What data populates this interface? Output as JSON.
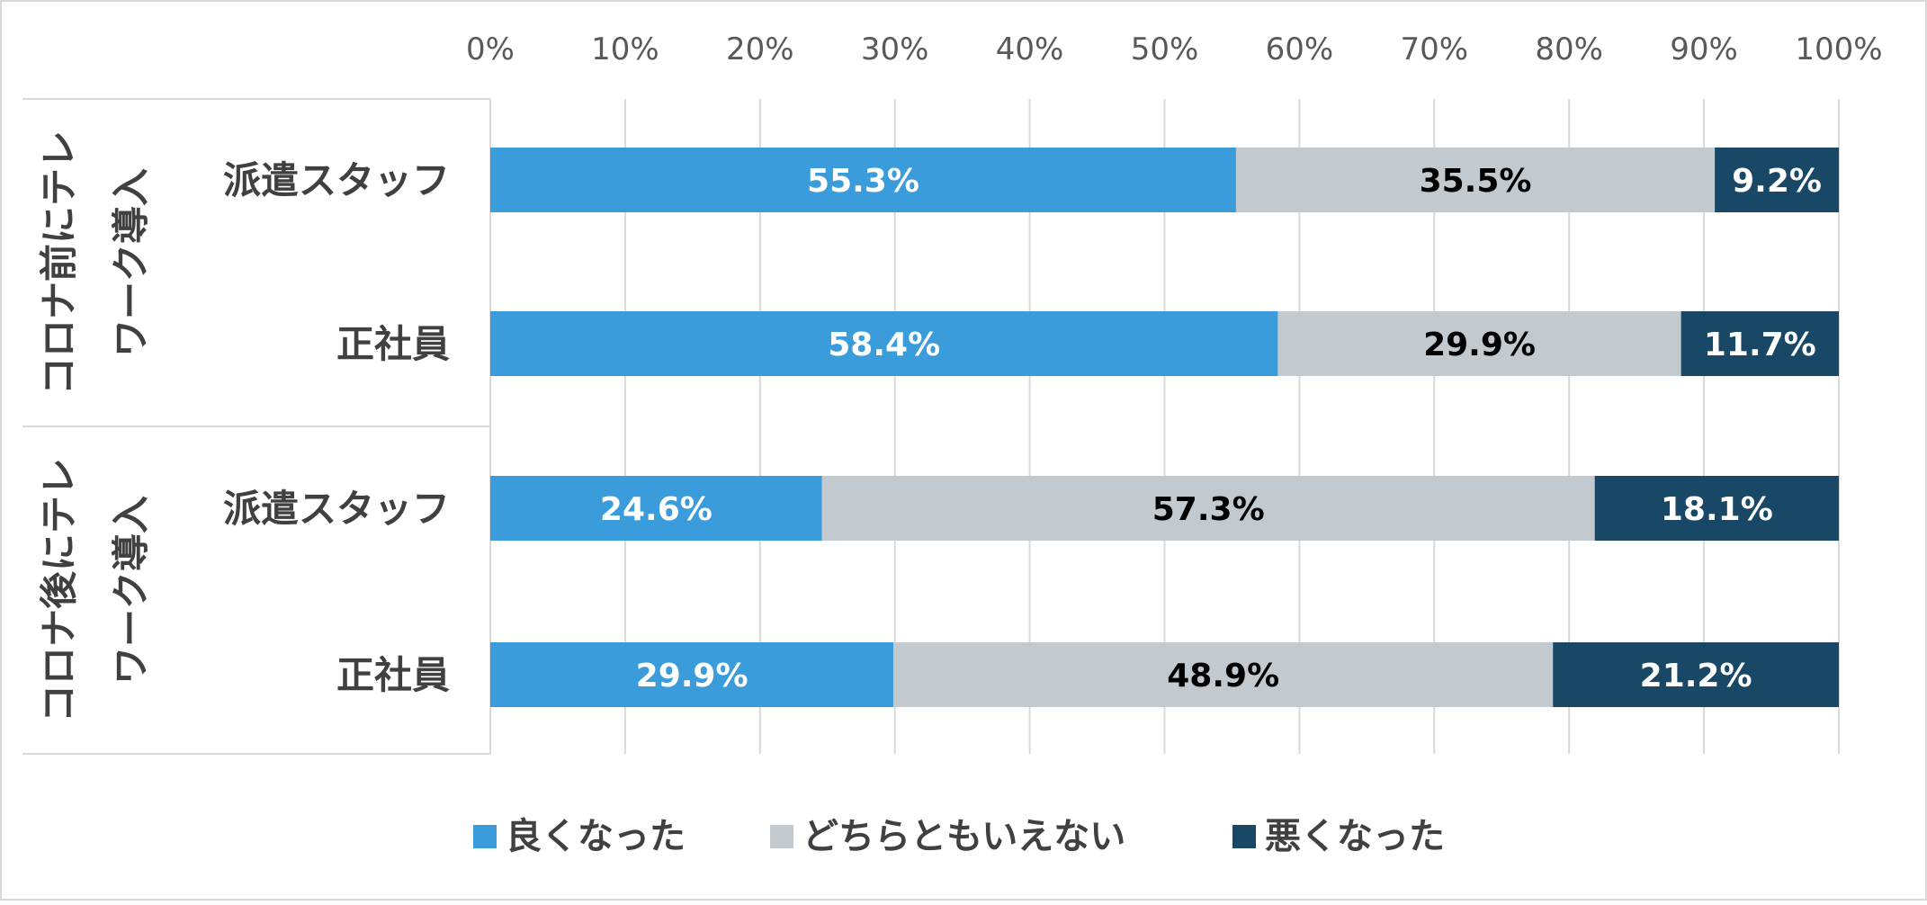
{
  "chart_data": {
    "type": "bar",
    "orientation": "horizontal",
    "stacked": "percent",
    "xlim": [
      0,
      100
    ],
    "x_ticks": [
      "0%",
      "10%",
      "20%",
      "30%",
      "40%",
      "50%",
      "60%",
      "70%",
      "80%",
      "90%",
      "100%"
    ],
    "x_axis_position": "top",
    "grid": true,
    "legend_position": "bottom",
    "groups": [
      {
        "label": "コロナ前にテレワーク導入",
        "label_lines": [
          "コロナ前にテレ",
          "ワーク導入"
        ]
      },
      {
        "label": "コロナ後にテレワーク導入",
        "label_lines": [
          "コロナ後にテレ",
          "ワーク導入"
        ]
      }
    ],
    "categories": [
      {
        "group": 0,
        "label": "派遣スタッフ"
      },
      {
        "group": 0,
        "label": "正社員"
      },
      {
        "group": 1,
        "label": "派遣スタッフ"
      },
      {
        "group": 1,
        "label": "正社員"
      }
    ],
    "series": [
      {
        "name": "良くなった",
        "color": "#3b9cdb",
        "label_color": "#ffffff",
        "values": [
          55.3,
          58.4,
          24.6,
          29.9
        ],
        "labels": [
          "55.3%",
          "58.4%",
          "24.6%",
          "29.9%"
        ]
      },
      {
        "name": "どちらともいえない",
        "color": "#c3cacf",
        "label_color": "#000000",
        "values": [
          35.5,
          29.9,
          57.3,
          48.9
        ],
        "labels": [
          "35.5%",
          "29.9%",
          "57.3%",
          "48.9%"
        ]
      },
      {
        "name": "悪くなった",
        "color": "#184866",
        "label_color": "#ffffff",
        "values": [
          9.2,
          11.7,
          18.1,
          21.2
        ],
        "labels": [
          "9.2%",
          "11.7%",
          "18.1%",
          "21.2%"
        ]
      }
    ]
  }
}
